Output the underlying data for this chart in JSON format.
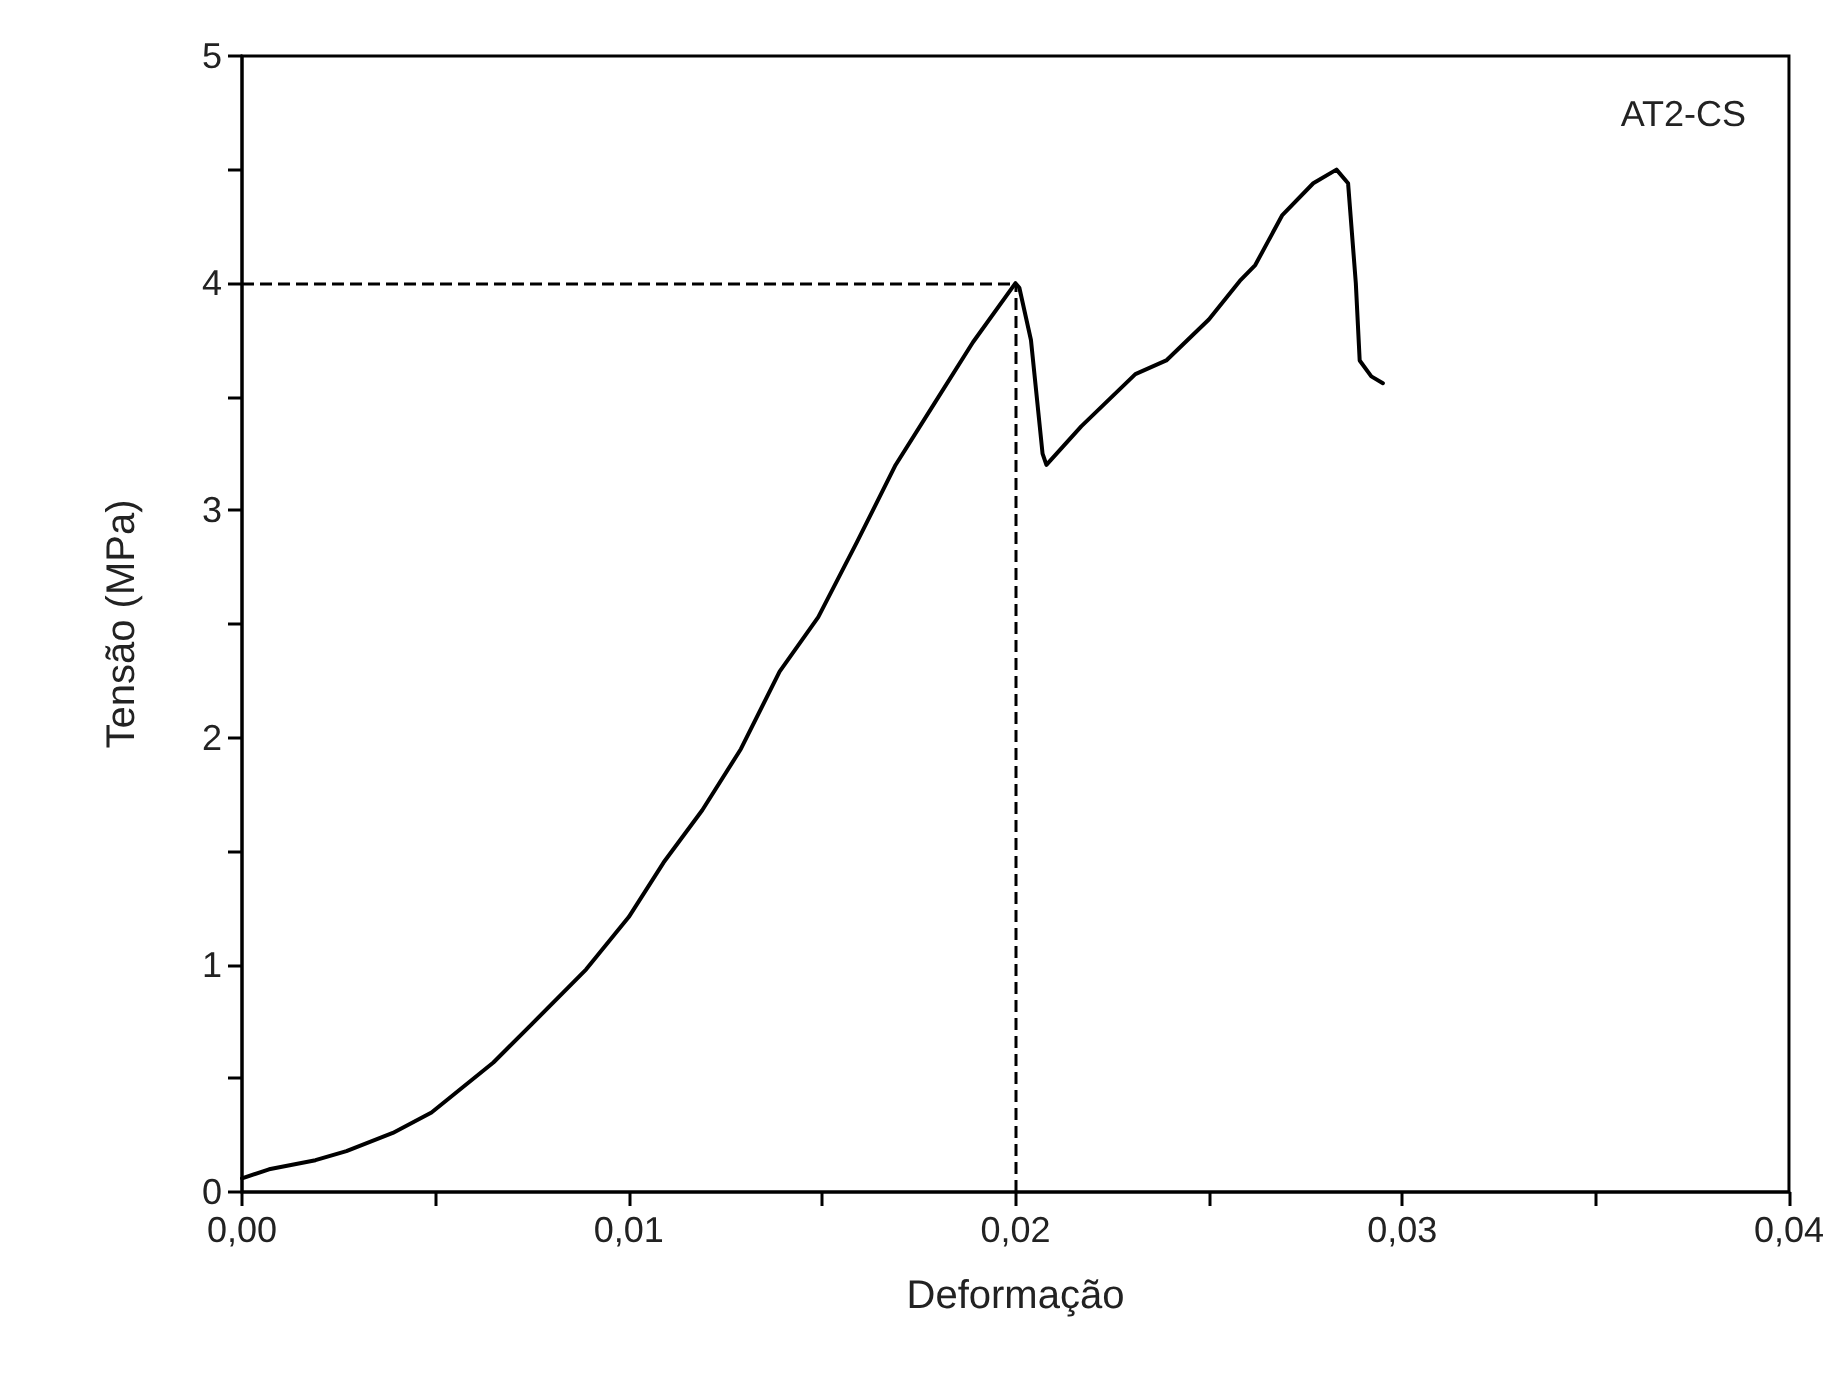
{
  "chart_data": {
    "type": "line",
    "xlabel": "Deformação",
    "ylabel": "Tensão (MPa)",
    "annotations": [
      "AT2-CS"
    ],
    "x": [
      0,
      0.0007,
      0.0019,
      0.0027,
      0.0039,
      0.0049,
      0.0065,
      0.0075,
      0.0089,
      0.01,
      0.0109,
      0.0119,
      0.0129,
      0.0139,
      0.0149,
      0.0159,
      0.0169,
      0.0179,
      0.0189,
      0.02,
      0.0201,
      0.0204,
      0.0207,
      0.0208,
      0.0217,
      0.0231,
      0.0239,
      0.025,
      0.0258,
      0.0262,
      0.0269,
      0.0277,
      0.0283,
      0.0286,
      0.0288,
      0.0289,
      0.0292,
      0.0295
    ],
    "series": [
      {
        "color": "#000000",
        "values": [
          0.06,
          0.1,
          0.14,
          0.18,
          0.26,
          0.35,
          0.57,
          0.74,
          0.98,
          1.21,
          1.45,
          1.68,
          1.95,
          2.29,
          2.53,
          2.86,
          3.2,
          3.47,
          3.74,
          4.0,
          3.98,
          3.75,
          3.25,
          3.2,
          3.37,
          3.6,
          3.66,
          3.84,
          4.01,
          4.08,
          4.3,
          4.44,
          4.5,
          4.44,
          4.0,
          3.66,
          3.59,
          3.56
        ]
      }
    ],
    "xlim": [
      0,
      0.04
    ],
    "xticks": [
      {
        "value": 0,
        "label": "0,00"
      },
      {
        "value": 0.005,
        "label": null
      },
      {
        "value": 0.01,
        "label": "0,01"
      },
      {
        "value": 0.015,
        "label": null
      },
      {
        "value": 0.02,
        "label": "0,02"
      },
      {
        "value": 0.025,
        "label": null
      },
      {
        "value": 0.03,
        "label": "0,03"
      },
      {
        "value": 0.035,
        "label": null
      },
      {
        "value": 0.04,
        "label": "0,04"
      }
    ],
    "ylim": [
      0,
      5
    ],
    "yticks": [
      0,
      {
        "value": 0.5,
        "label": null
      },
      1,
      {
        "value": 1.5,
        "label": null
      },
      2,
      {
        "value": 2.5,
        "label": null
      },
      3,
      {
        "value": 3.5,
        "label": null
      },
      4,
      {
        "value": 4.5,
        "label": null
      },
      5
    ],
    "ref_lines": [
      {
        "axis": "y",
        "value": 4.0,
        "line_style": "dashed"
      },
      {
        "axis": "x",
        "value": 0.02,
        "line_style": "dashed"
      }
    ],
    "grid": false,
    "marker": "none",
    "line_style": "solid"
  }
}
